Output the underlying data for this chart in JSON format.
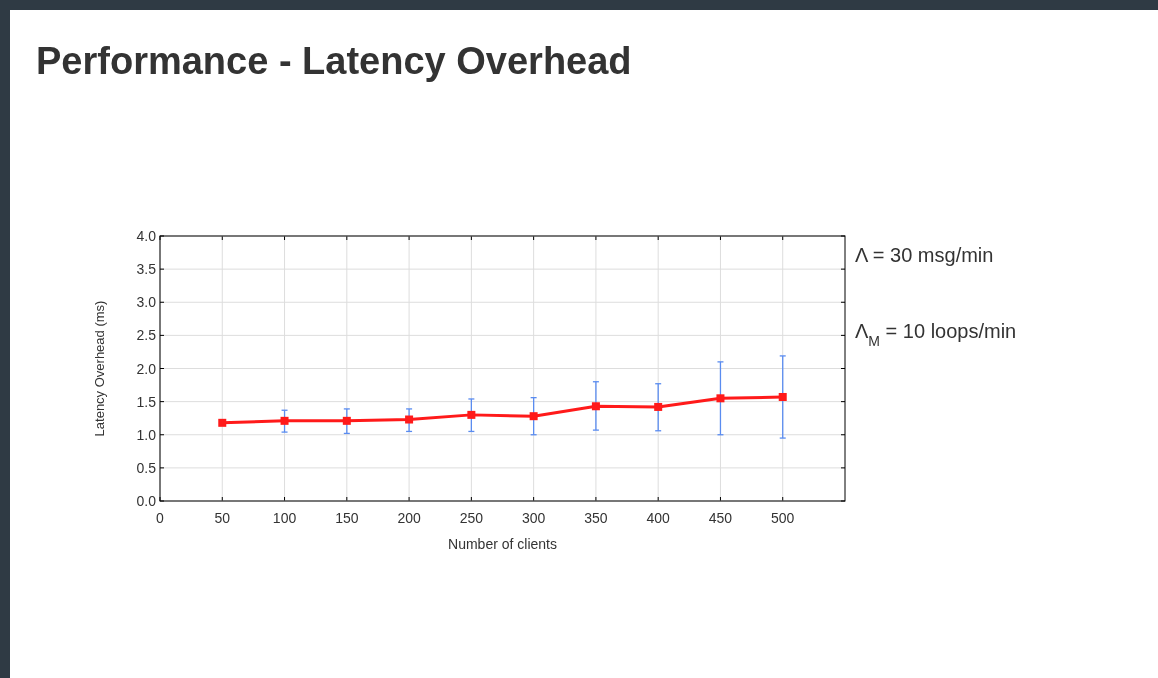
{
  "chart_data": {
    "type": "line",
    "title": "Performance - Latency Overhead",
    "xlabel": "Number of clients",
    "ylabel": "Latency Overhead (ms)",
    "annotations": [
      "Λ = 30 msg/min",
      "Λ$_{M}$ = 10 loops/min"
    ],
    "x": [
      50,
      100,
      150,
      200,
      250,
      300,
      350,
      400,
      450,
      500
    ],
    "series": [
      {
        "color": "#ff1a1a",
        "values": [
          1.18,
          1.21,
          1.21,
          1.23,
          1.3,
          1.28,
          1.43,
          1.42,
          1.55,
          1.57
        ],
        "errors": [
          null,
          [
            1.04,
            1.37
          ],
          [
            1.02,
            1.39
          ],
          [
            1.05,
            1.39
          ],
          [
            1.05,
            1.54
          ],
          [
            1.0,
            1.56
          ],
          [
            1.07,
            1.8
          ],
          [
            1.06,
            1.77
          ],
          [
            1.0,
            2.1
          ],
          [
            0.95,
            2.19
          ]
        ]
      }
    ],
    "xlim": [
      0,
      550
    ],
    "xticks": [
      0,
      50,
      100,
      150,
      200,
      250,
      300,
      350,
      400,
      450,
      500
    ],
    "ylim": [
      0,
      4
    ],
    "yticks": [
      {
        "value": 0,
        "label": "0.0"
      },
      {
        "value": 0.5,
        "label": "0.5"
      },
      {
        "value": 1,
        "label": "1.0"
      },
      {
        "value": 1.5,
        "label": "1.5"
      },
      {
        "value": 2,
        "label": "2.0"
      },
      {
        "value": 2.5,
        "label": "2.5"
      },
      {
        "value": 3,
        "label": "3.0"
      },
      {
        "value": 3.5,
        "label": "3.5"
      },
      {
        "value": 4,
        "label": "4.0"
      }
    ],
    "grid": true,
    "marker": "square",
    "line_style": "solid"
  }
}
